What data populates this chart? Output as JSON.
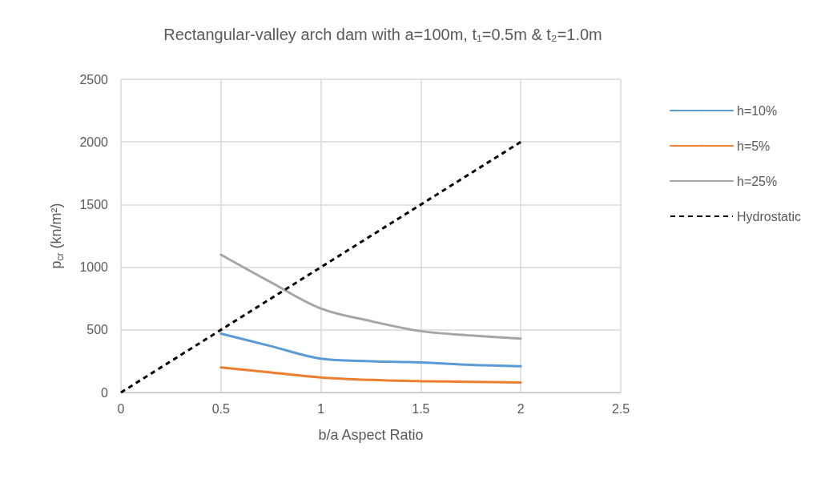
{
  "chart_data": {
    "type": "line",
    "title": "Rectangular-valley arch dam with a=100m, t₁=0.5m & t₂=1.0m",
    "xlabel": "b/a Aspect Ratio",
    "ylabel": "p$_{cr}$ (kn/m²)",
    "xlim": [
      0,
      2.5
    ],
    "xticks": [
      0,
      0.5,
      1,
      1.5,
      2,
      2.5
    ],
    "ylim": [
      0,
      2500
    ],
    "yticks": [
      0,
      500,
      1000,
      1500,
      2000,
      2500
    ],
    "grid": true,
    "legend": "right",
    "marker": "none",
    "series": [
      {
        "name": "h=10%",
        "color": "#5b9bd5",
        "line_style": "solid",
        "x": [
          0.5,
          0.75,
          1,
          1.25,
          1.5,
          1.75,
          2
        ],
        "values": [
          470,
          370,
          270,
          250,
          240,
          220,
          210
        ]
      },
      {
        "name": "h=5%",
        "color": "#ed7d31",
        "line_style": "solid",
        "x": [
          0.5,
          0.75,
          1,
          1.25,
          1.5,
          1.75,
          2
        ],
        "values": [
          200,
          160,
          120,
          100,
          90,
          85,
          80
        ]
      },
      {
        "name": "h=25%",
        "color": "#a5a5a5",
        "line_style": "solid",
        "x": [
          0.5,
          0.75,
          1,
          1.25,
          1.5,
          1.75,
          2
        ],
        "values": [
          1100,
          880,
          670,
          570,
          490,
          455,
          430
        ]
      },
      {
        "name": "Hydrostatic",
        "color": "#000000",
        "line_style": "dashed",
        "x": [
          0,
          2
        ],
        "values": [
          0,
          2000
        ]
      }
    ]
  }
}
